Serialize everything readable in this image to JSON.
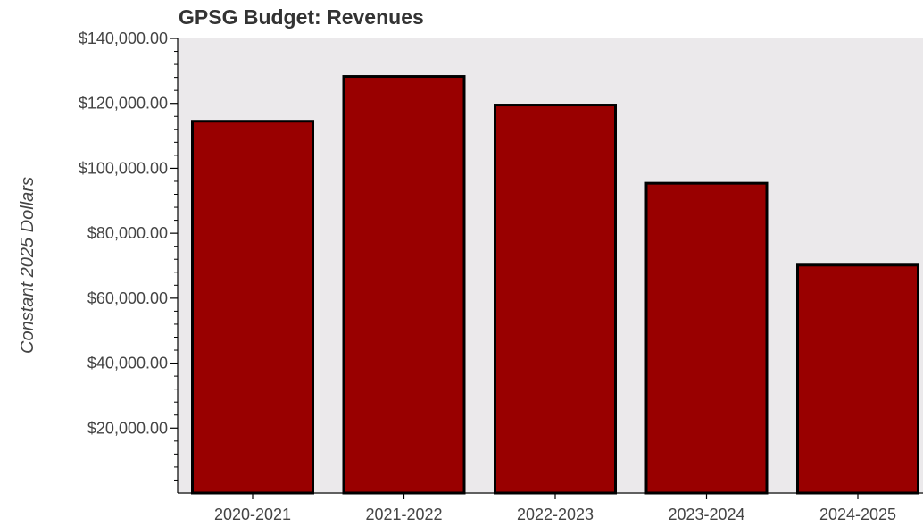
{
  "chart_data": {
    "type": "bar",
    "title": "GPSG Budget: Revenues",
    "xlabel": "",
    "ylabel": "Constant 2025 Dollars",
    "categories": [
      "2020-2021",
      "2021-2022",
      "2022-2023",
      "2023-2024",
      "2024-2025"
    ],
    "values": [
      114500,
      128300,
      119500,
      95400,
      70200
    ],
    "ylim": [
      0,
      140000
    ],
    "y_ticks": [
      20000,
      40000,
      60000,
      80000,
      100000,
      120000,
      140000
    ],
    "y_tick_labels": [
      "$20,000.00",
      "$40,000.00",
      "$60,000.00",
      "$80,000.00",
      "$100,000.00",
      "$120,000.00",
      "$140,000.00"
    ],
    "grid": false,
    "bar_color": "#990000",
    "bar_edge_color": "#000000",
    "plot_background": "#ebe9eb"
  }
}
